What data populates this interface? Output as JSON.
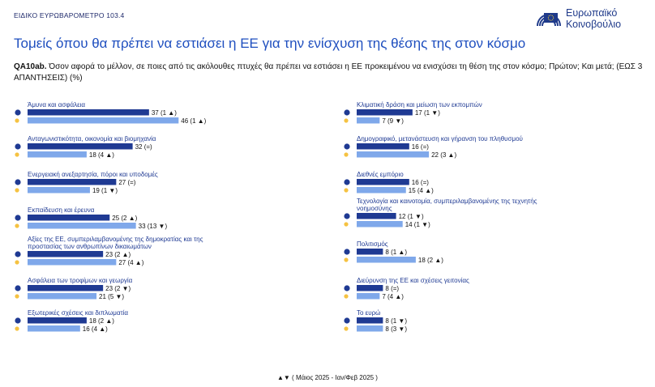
{
  "header": {
    "survey_label": "ΕΙΔΙΚΟ ΕΥΡΩΒΑΡΟΜΕΤΡΟ 103.4"
  },
  "logo": {
    "line1": "Ευρωπαϊκό",
    "line2": "Κοινοβούλιο"
  },
  "page_title": "Τομείς όπου θα πρέπει να εστιάσει η ΕΕ για την ενίσχυση της θέσης της στον κόσμο",
  "question": {
    "code": "QA10ab.",
    "text": " Όσον αφορά το μέλλον, σε ποιες από τις ακόλουθες πτυχές θα πρέπει να εστιάσει η ΕΕ προκειμένου να ενισχύσει τη θέση της στον κόσμο; Πρώτον; Και μετά; (ΕΩΣ 3 ΑΠΑΝΤΗΣΕΙΣ) (%)"
  },
  "footer": {
    "legend": "▲▼ ( Μάιος 2025 - Ιαν/Φεβ 2025 )"
  },
  "colors": {
    "eu_bar": "#1f3a93",
    "national_bar": "#7fa8ea",
    "up": "#1f3a93",
    "down": "#1f3a93"
  },
  "chart_data": {
    "type": "bar",
    "orientation": "horizontal",
    "series_note": "pairs of bars: EU average (dark, circle marker) and national (light, country marker)",
    "items": [
      {
        "label": "Άμυνα και ασφάλεια",
        "eu": 37,
        "eu_change": "1",
        "eu_dir": "up",
        "nat": 46,
        "nat_change": "1",
        "nat_dir": "up"
      },
      {
        "label": "Ανταγωνιστικότητα, οικονομία και βιομηχανία",
        "eu": 32,
        "eu_change": "=",
        "eu_dir": "eq",
        "nat": 18,
        "nat_change": "4",
        "nat_dir": "up"
      },
      {
        "label": "Ενεργειακή ανεξαρτησία, πόροι και υποδομές",
        "eu": 27,
        "eu_change": "=",
        "eu_dir": "eq",
        "nat": 19,
        "nat_change": "1",
        "nat_dir": "down"
      },
      {
        "label": "Εκπαίδευση και έρευνα",
        "eu": 25,
        "eu_change": "2",
        "eu_dir": "up",
        "nat": 33,
        "nat_change": "13",
        "nat_dir": "down"
      },
      {
        "label": "Αξίες της ΕΕ, συμπεριλαμβανομένης της δημοκρατίας και της προστασίας των ανθρωπίνων δικαιωμάτων",
        "eu": 23,
        "eu_change": "2",
        "eu_dir": "up",
        "nat": 27,
        "nat_change": "4",
        "nat_dir": "up"
      },
      {
        "label": "Ασφάλεια των τροφίμων και γεωργία",
        "eu": 23,
        "eu_change": "2",
        "eu_dir": "down",
        "nat": 21,
        "nat_change": "5",
        "nat_dir": "down"
      },
      {
        "label": "Εξωτερικές σχέσεις και διπλωματία",
        "eu": 18,
        "eu_change": "2",
        "eu_dir": "up",
        "nat": 16,
        "nat_change": "4",
        "nat_dir": "up"
      },
      {
        "label": "Κλιματική δράση και μείωση των εκπομπών",
        "eu": 17,
        "eu_change": "1",
        "eu_dir": "down",
        "nat": 7,
        "nat_change": "9",
        "nat_dir": "down"
      },
      {
        "label": "Δημογραφικό, μετανάστευση και γήρανση του πληθυσμού",
        "eu": 16,
        "eu_change": "=",
        "eu_dir": "eq",
        "nat": 22,
        "nat_change": "3",
        "nat_dir": "up"
      },
      {
        "label": "Διεθνές εμπόριο",
        "eu": 16,
        "eu_change": "=",
        "eu_dir": "eq",
        "nat": 15,
        "nat_change": "4",
        "nat_dir": "up"
      },
      {
        "label": "Τεχνολογία και καινοτομία, συμπεριλαμβανομένης της τεχνητής νοημοσύνης",
        "eu": 12,
        "eu_change": "1",
        "eu_dir": "down",
        "nat": 14,
        "nat_change": "1",
        "nat_dir": "down"
      },
      {
        "label": "Πολιτισμός",
        "eu": 8,
        "eu_change": "1",
        "eu_dir": "up",
        "nat": 18,
        "nat_change": "2",
        "nat_dir": "up"
      },
      {
        "label": "Διεύρυνση της ΕΕ και σχέσεις γειτονίας",
        "eu": 8,
        "eu_change": "=",
        "eu_dir": "eq",
        "nat": 7,
        "nat_change": "4",
        "nat_dir": "up"
      },
      {
        "label": "Το ευρώ",
        "eu": 8,
        "eu_change": "1",
        "eu_dir": "down",
        "nat": 8,
        "nat_change": "3",
        "nat_dir": "down"
      }
    ]
  }
}
